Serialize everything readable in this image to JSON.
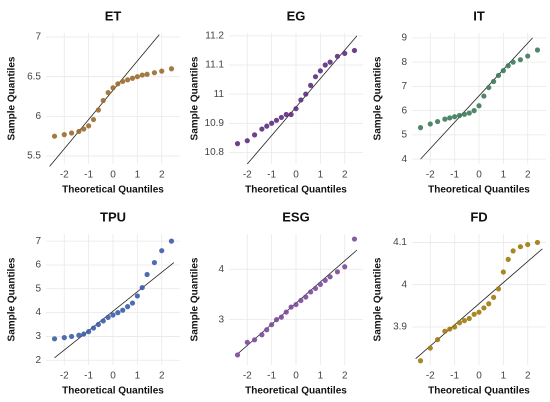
{
  "chart_data": [
    {
      "type": "scatter",
      "title": "ET",
      "x_label": "Theoretical Quantiles",
      "y_label": "Sample Quantiles",
      "color": "#9a6b2e",
      "grid": true,
      "x": [
        -2.4,
        -2.0,
        -1.7,
        -1.4,
        -1.2,
        -1.0,
        -0.8,
        -0.6,
        -0.4,
        -0.2,
        0,
        0.2,
        0.4,
        0.6,
        0.8,
        1.0,
        1.2,
        1.4,
        1.7,
        2.0,
        2.4
      ],
      "values": [
        5.75,
        5.77,
        5.79,
        5.81,
        5.84,
        5.88,
        5.96,
        6.08,
        6.2,
        6.3,
        6.36,
        6.41,
        6.44,
        6.46,
        6.48,
        6.5,
        6.52,
        6.53,
        6.55,
        6.57,
        6.6
      ],
      "reference_line": {
        "x": [
          -2.6,
          1.9
        ],
        "y": [
          5.37,
          7.03
        ]
      },
      "xlim": [
        -2.75,
        2.75
      ],
      "xticks": [
        -2,
        -1,
        0,
        1,
        2
      ],
      "ylim": [
        5.4,
        7.05
      ],
      "yticks": [
        5.5,
        6.0,
        6.5,
        7.0
      ]
    },
    {
      "type": "scatter",
      "title": "EG",
      "x_label": "Theoretical Quantiles",
      "y_label": "Sample Quantiles",
      "color": "#5b2d7e",
      "grid": true,
      "x": [
        -2.4,
        -2.0,
        -1.7,
        -1.4,
        -1.2,
        -1.0,
        -0.8,
        -0.6,
        -0.4,
        -0.2,
        0,
        0.2,
        0.4,
        0.6,
        0.8,
        1.0,
        1.2,
        1.4,
        1.7,
        2.0,
        2.4
      ],
      "values": [
        10.83,
        10.84,
        10.86,
        10.88,
        10.89,
        10.9,
        10.91,
        10.92,
        10.93,
        10.93,
        10.95,
        10.98,
        11.0,
        11.03,
        11.06,
        11.08,
        11.1,
        11.11,
        11.13,
        11.14,
        11.15
      ],
      "reference_line": {
        "x": [
          -2.0,
          2.5
        ],
        "y": [
          10.76,
          11.2
        ]
      },
      "xlim": [
        -2.75,
        2.75
      ],
      "xticks": [
        -2,
        -1,
        0,
        1,
        2
      ],
      "ylim": [
        10.76,
        11.21
      ],
      "yticks": [
        10.8,
        10.9,
        11.0,
        11.1,
        11.2
      ]
    },
    {
      "type": "scatter",
      "title": "IT",
      "x_label": "Theoretical Quantiles",
      "y_label": "Sample Quantiles",
      "color": "#3d7a5a",
      "grid": true,
      "x": [
        -2.4,
        -2.0,
        -1.7,
        -1.4,
        -1.2,
        -1.0,
        -0.8,
        -0.6,
        -0.4,
        -0.2,
        0,
        0.2,
        0.4,
        0.6,
        0.8,
        1.0,
        1.2,
        1.4,
        1.7,
        2.0,
        2.4
      ],
      "values": [
        5.3,
        5.45,
        5.55,
        5.65,
        5.7,
        5.75,
        5.8,
        5.85,
        5.9,
        6.0,
        6.2,
        6.6,
        6.95,
        7.2,
        7.45,
        7.65,
        7.85,
        8.0,
        8.1,
        8.25,
        8.5
      ],
      "reference_line": {
        "x": [
          -2.4,
          2.2
        ],
        "y": [
          4.0,
          9.0
        ]
      },
      "xlim": [
        -2.75,
        2.75
      ],
      "xticks": [
        -2,
        -1,
        0,
        1,
        2
      ],
      "ylim": [
        3.8,
        9.2
      ],
      "yticks": [
        4,
        5,
        6,
        7,
        8,
        9
      ]
    },
    {
      "type": "scatter",
      "title": "TPU",
      "x_label": "Theoretical Quantiles",
      "y_label": "Sample Quantiles",
      "color": "#3a5ca8",
      "grid": true,
      "x": [
        -2.4,
        -2.0,
        -1.7,
        -1.4,
        -1.2,
        -1.0,
        -0.8,
        -0.6,
        -0.4,
        -0.2,
        0,
        0.2,
        0.4,
        0.6,
        0.8,
        1.0,
        1.2,
        1.4,
        1.7,
        2.0,
        2.4
      ],
      "values": [
        2.9,
        2.95,
        3.0,
        3.05,
        3.1,
        3.2,
        3.35,
        3.5,
        3.65,
        3.8,
        3.9,
        4.0,
        4.1,
        4.25,
        4.4,
        4.7,
        5.05,
        5.6,
        6.1,
        6.6,
        7.0
      ],
      "reference_line": {
        "x": [
          -2.4,
          2.5
        ],
        "y": [
          2.1,
          6.1
        ]
      },
      "xlim": [
        -2.75,
        2.75
      ],
      "xticks": [
        -2,
        -1,
        0,
        1,
        2
      ],
      "ylim": [
        1.8,
        7.3
      ],
      "yticks": [
        2,
        3,
        4,
        5,
        6,
        7
      ]
    },
    {
      "type": "scatter",
      "title": "ESG",
      "x_label": "Theoretical Quantiles",
      "y_label": "Sample Quantiles",
      "color": "#7b4a9a",
      "grid": true,
      "x": [
        -2.4,
        -2.0,
        -1.7,
        -1.4,
        -1.2,
        -1.0,
        -0.8,
        -0.6,
        -0.4,
        -0.2,
        0,
        0.2,
        0.4,
        0.6,
        0.8,
        1.0,
        1.2,
        1.4,
        1.7,
        2.0,
        2.4
      ],
      "values": [
        2.3,
        2.55,
        2.6,
        2.7,
        2.8,
        2.9,
        3.0,
        3.05,
        3.15,
        3.25,
        3.3,
        3.38,
        3.45,
        3.55,
        3.62,
        3.7,
        3.78,
        3.85,
        3.95,
        4.05,
        4.6
      ],
      "reference_line": {
        "x": [
          -2.4,
          2.5
        ],
        "y": [
          2.32,
          4.38
        ]
      },
      "xlim": [
        -2.75,
        2.75
      ],
      "xticks": [
        -2,
        -1,
        0,
        1,
        2
      ],
      "ylim": [
        2.1,
        4.7
      ],
      "yticks": [
        3,
        4
      ]
    },
    {
      "type": "scatter",
      "title": "FD",
      "x_label": "Theoretical Quantiles",
      "y_label": "Sample Quantiles",
      "color": "#a07a10",
      "grid": true,
      "x": [
        -2.4,
        -2.0,
        -1.7,
        -1.4,
        -1.2,
        -1.0,
        -0.8,
        -0.6,
        -0.4,
        -0.2,
        0,
        0.2,
        0.4,
        0.6,
        0.8,
        1.0,
        1.2,
        1.4,
        1.7,
        2.0,
        2.4
      ],
      "values": [
        3.82,
        3.85,
        3.87,
        3.89,
        3.895,
        3.9,
        3.91,
        3.915,
        3.92,
        3.93,
        3.935,
        3.945,
        3.955,
        3.97,
        3.99,
        4.03,
        4.06,
        4.08,
        4.09,
        4.095,
        4.1
      ],
      "reference_line": {
        "x": [
          -2.6,
          2.6
        ],
        "y": [
          3.825,
          4.085
        ]
      },
      "xlim": [
        -2.75,
        2.75
      ],
      "xticks": [
        -2,
        -1,
        0,
        1,
        2
      ],
      "ylim": [
        3.81,
        4.12
      ],
      "yticks": [
        3.9,
        4.0,
        4.1
      ]
    }
  ]
}
